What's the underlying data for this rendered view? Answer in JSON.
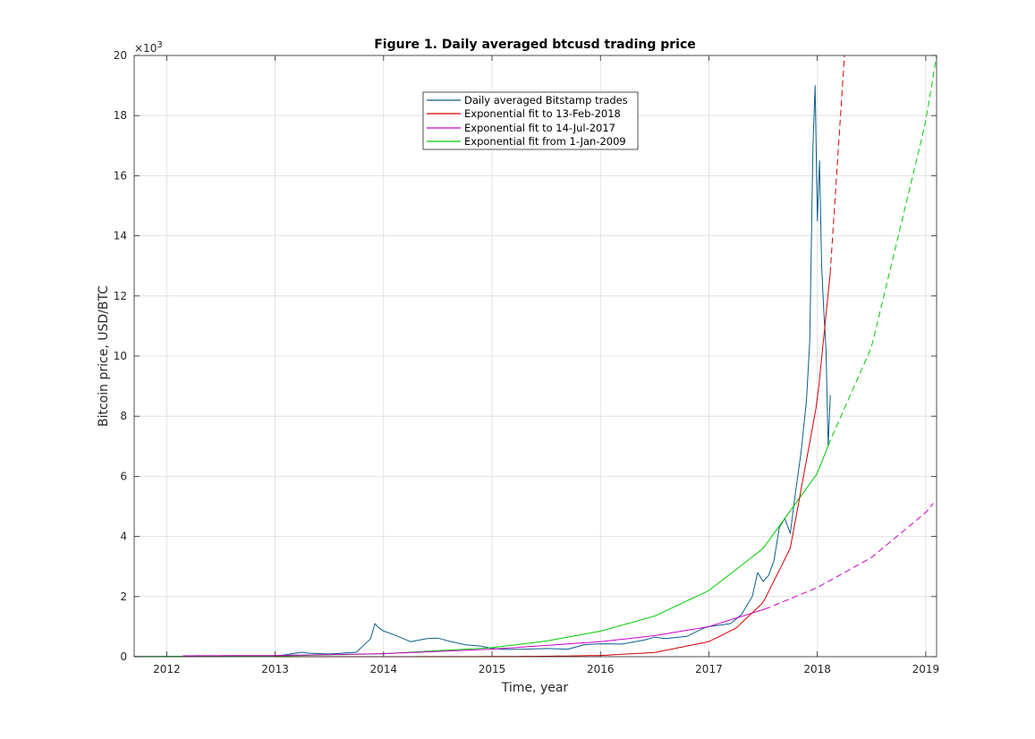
{
  "chart_data": {
    "type": "line",
    "title": "Figure 1. Daily averaged btcusd trading price",
    "xlabel": "Time, year",
    "ylabel": "Bitcoin price, USD/BTC",
    "y_exponent_label": "×10",
    "y_exponent_power": "3",
    "xlim": [
      2011.7,
      2019.1
    ],
    "ylim": [
      0,
      20
    ],
    "x_ticks": [
      2012,
      2013,
      2014,
      2015,
      2016,
      2017,
      2018,
      2019
    ],
    "x_tick_labels": [
      "2012",
      "2013",
      "2014",
      "2015",
      "2016",
      "2017",
      "2018",
      "2019"
    ],
    "y_ticks": [
      0,
      2,
      4,
      6,
      8,
      10,
      12,
      14,
      16,
      18,
      20
    ],
    "y_tick_labels": [
      "0",
      "2",
      "4",
      "6",
      "8",
      "10",
      "12",
      "14",
      "16",
      "18",
      "20"
    ],
    "grid": true,
    "legend_position": "top-center",
    "series": [
      {
        "name": "Daily averaged Bitstamp trades",
        "color": "#0b5e8a",
        "style": "solid",
        "x": [
          2011.7,
          2012.5,
          2013.0,
          2013.25,
          2013.3,
          2013.5,
          2013.75,
          2013.88,
          2013.92,
          2013.96,
          2014.0,
          2014.08,
          2014.15,
          2014.25,
          2014.4,
          2014.5,
          2014.6,
          2014.75,
          2014.9,
          2015.0,
          2015.1,
          2015.3,
          2015.5,
          2015.7,
          2015.85,
          2016.0,
          2016.2,
          2016.4,
          2016.5,
          2016.6,
          2016.8,
          2016.95,
          2017.0,
          2017.1,
          2017.2,
          2017.3,
          2017.4,
          2017.45,
          2017.5,
          2017.55,
          2017.6,
          2017.65,
          2017.7,
          2017.75,
          2017.8,
          2017.85,
          2017.9,
          2017.93,
          2017.96,
          2017.98,
          2018.0,
          2018.02,
          2018.04,
          2018.06,
          2018.08,
          2018.1,
          2018.12
        ],
        "values": [
          0.005,
          0.008,
          0.014,
          0.15,
          0.12,
          0.09,
          0.15,
          0.6,
          1.1,
          0.95,
          0.85,
          0.75,
          0.65,
          0.5,
          0.6,
          0.62,
          0.52,
          0.4,
          0.35,
          0.28,
          0.24,
          0.25,
          0.27,
          0.25,
          0.4,
          0.43,
          0.42,
          0.55,
          0.65,
          0.6,
          0.68,
          0.95,
          1.0,
          1.05,
          1.1,
          1.4,
          2.0,
          2.8,
          2.5,
          2.7,
          3.2,
          4.3,
          4.6,
          4.1,
          5.5,
          6.8,
          8.5,
          10.5,
          17.0,
          19.0,
          14.5,
          16.5,
          13.0,
          11.5,
          10.2,
          7.0,
          8.7
        ]
      },
      {
        "name": "Exponential fit to 13-Feb-2018",
        "color": "#d40000",
        "style": "solid-then-dashed",
        "fit_end": 2018.12,
        "x": [
          2013.0,
          2014.0,
          2015.0,
          2015.5,
          2016.0,
          2016.5,
          2017.0,
          2017.25,
          2017.5,
          2017.75,
          2018.0,
          2018.12,
          2018.25
        ],
        "values": [
          0.0,
          0.0,
          0.005,
          0.015,
          0.04,
          0.14,
          0.5,
          0.95,
          1.8,
          3.6,
          8.5,
          12.8,
          20.0
        ]
      },
      {
        "name": "Exponential fit to 14-Jul-2017",
        "color": "#cc00cc",
        "style": "solid-then-dashed",
        "fit_end": 2017.53,
        "x": [
          2012.15,
          2013.0,
          2014.0,
          2015.0,
          2016.0,
          2016.5,
          2017.0,
          2017.53,
          2018.0,
          2018.5,
          2019.0,
          2019.07
        ],
        "values": [
          0.03,
          0.04,
          0.1,
          0.25,
          0.5,
          0.7,
          1.0,
          1.6,
          2.3,
          3.3,
          4.8,
          5.1
        ]
      },
      {
        "name": "Exponential fit from 1-Jan-2009",
        "color": "#00cc00",
        "style": "solid-then-dashed",
        "fit_end": 2018.12,
        "x": [
          2011.7,
          2013.0,
          2014.0,
          2015.0,
          2015.5,
          2016.0,
          2016.5,
          2017.0,
          2017.5,
          2018.0,
          2018.12,
          2018.5,
          2019.0,
          2019.1
        ],
        "values": [
          0.0,
          0.02,
          0.1,
          0.3,
          0.52,
          0.85,
          1.35,
          2.2,
          3.6,
          6.1,
          7.2,
          10.3,
          17.8,
          20.0
        ]
      }
    ]
  }
}
